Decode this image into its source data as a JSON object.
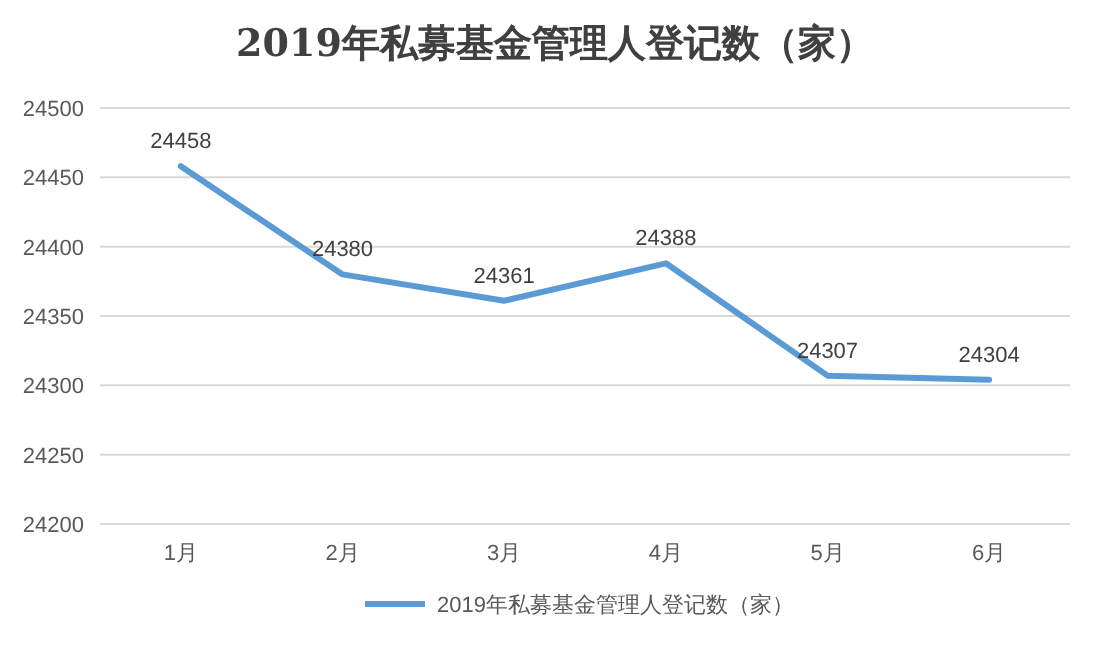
{
  "chart_data": {
    "type": "line",
    "title": "2019年私募基金管理人登记数（家）",
    "categories": [
      "1月",
      "2月",
      "3月",
      "4月",
      "5月",
      "6月"
    ],
    "series": [
      {
        "name": "2019年私募基金管理人登记数（家）",
        "color": "#5b9bd5",
        "values": [
          24458,
          24380,
          24361,
          24388,
          24307,
          24304
        ]
      }
    ],
    "ylim": [
      24200,
      24500
    ],
    "yticks": [
      24200,
      24250,
      24300,
      24350,
      24400,
      24450,
      24500
    ],
    "grid": "y",
    "legend": "bottom",
    "data_labels": true
  }
}
